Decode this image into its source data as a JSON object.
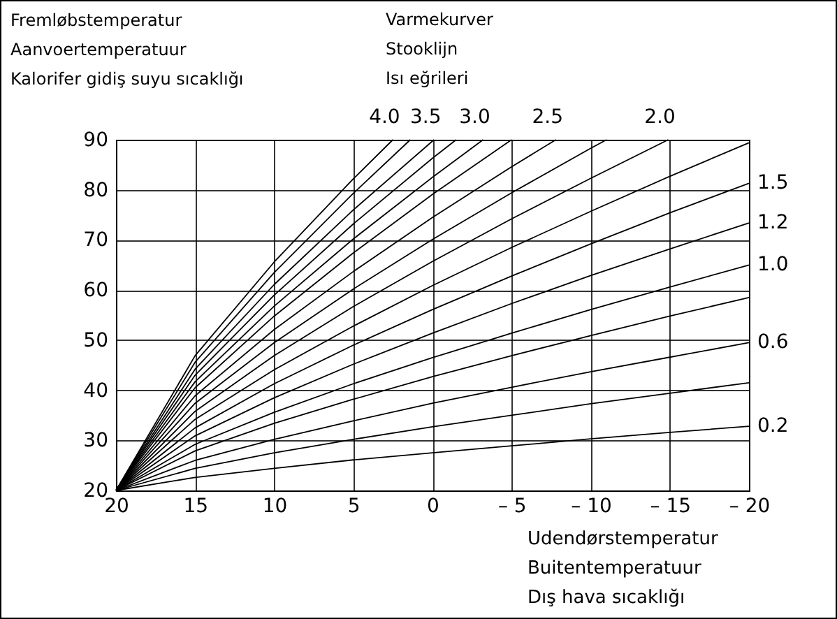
{
  "chart_data": {
    "type": "line",
    "ylabel": "Fremløbstemperatur\nAanvoertemperatuur\nKalorifer gidiş suyu sıcaklığı",
    "legend_title": "Varmekurver\nStooklijn\nIsı eğrileri",
    "xlabel": "Udendørstemperatur\nBuitentemperatuur\nDış hava sıcaklığı",
    "xlim": [
      20,
      -20
    ],
    "ylim": [
      20,
      90
    ],
    "xticks": [
      20,
      15,
      10,
      5,
      0,
      {
        "value": -5,
        "label": "– 5"
      },
      {
        "value": -10,
        "label": "– 10"
      },
      {
        "value": -15,
        "label": "– 15"
      },
      {
        "value": -20,
        "label": "– 20"
      }
    ],
    "yticks": [
      20,
      30,
      40,
      50,
      60,
      70,
      80,
      90
    ],
    "grid": true,
    "legend": false,
    "series": [
      {
        "name": "0.2",
        "color": "#000000",
        "x": [
          20,
          15,
          10,
          5,
          0,
          -5,
          -10,
          -15,
          -20
        ],
        "values": [
          20,
          22.6,
          24.4,
          26.1,
          27.5,
          28.9,
          30.3,
          31.6,
          32.8
        ]
      },
      {
        "color": "#000000",
        "x": [
          20,
          15,
          10,
          5,
          0,
          -5,
          -10,
          -15,
          -20
        ],
        "values": [
          20,
          24.4,
          27.5,
          30.2,
          32.7,
          35.0,
          37.3,
          39.4,
          41.5
        ]
      },
      {
        "name": "0.6",
        "color": "#000000",
        "x": [
          20,
          15,
          10,
          5,
          0,
          -5,
          -10,
          -15,
          -20
        ],
        "values": [
          20,
          26.0,
          30.2,
          33.9,
          37.4,
          40.6,
          43.7,
          46.6,
          49.5
        ]
      },
      {
        "color": "#000000",
        "x": [
          20,
          15,
          10,
          5,
          0,
          -5,
          -10,
          -15,
          -20
        ],
        "values": [
          20,
          27.9,
          33.4,
          38.2,
          42.7,
          46.9,
          50.9,
          54.8,
          58.5
        ]
      },
      {
        "name": "1.0",
        "color": "#000000",
        "x": [
          20,
          15,
          10,
          5,
          0,
          -5,
          -10,
          -15,
          -20
        ],
        "values": [
          20,
          29.2,
          35.6,
          41.3,
          46.5,
          51.4,
          56.1,
          60.6,
          65.0
        ]
      },
      {
        "name": "1.2",
        "color": "#000000",
        "x": [
          20,
          15,
          10,
          5,
          0,
          -5,
          -10,
          -15,
          -20
        ],
        "values": [
          20,
          30.9,
          38.5,
          45.2,
          51.4,
          57.3,
          62.9,
          68.2,
          73.4
        ]
      },
      {
        "name": "1.5",
        "color": "#000000",
        "x": [
          20,
          15,
          10,
          5,
          0,
          -5,
          -10,
          -15,
          -20
        ],
        "values": [
          20,
          32.5,
          41.3,
          49.0,
          56.1,
          62.8,
          69.2,
          75.4,
          81.3
        ]
      },
      {
        "color": "#000000",
        "x": [
          20,
          15,
          10,
          5,
          0,
          -5,
          -10,
          -15,
          -20
        ],
        "values": [
          20,
          34.2,
          44.1,
          52.8,
          60.9,
          68.5,
          75.7,
          82.7,
          89.4
        ]
      },
      {
        "name": "2.0",
        "color": "#000000",
        "x": [
          20,
          15,
          10,
          5,
          0,
          -5,
          -10,
          -14.9
        ],
        "values": [
          20,
          35.8,
          46.9,
          56.7,
          65.7,
          74.2,
          82.3,
          90
        ]
      },
      {
        "color": "#000000",
        "x": [
          20,
          15,
          10,
          5,
          0,
          -5,
          -10,
          -11
        ],
        "values": [
          20,
          37.4,
          49.5,
          60.2,
          70.1,
          79.4,
          88.3,
          90
        ]
      },
      {
        "name": "2.5",
        "color": "#000000",
        "x": [
          20,
          15,
          10,
          5,
          0,
          -5,
          -7.8
        ],
        "values": [
          20,
          38.9,
          52.1,
          63.7,
          74.5,
          84.6,
          90
        ]
      },
      {
        "color": "#000000",
        "x": [
          20,
          15,
          10,
          5,
          0,
          -5
        ],
        "values": [
          20,
          40.5,
          54.8,
          67.4,
          79.1,
          90
        ]
      },
      {
        "name": "3.0",
        "color": "#000000",
        "x": [
          20,
          15,
          10,
          5,
          0,
          -3.2
        ],
        "values": [
          20,
          41.7,
          56.8,
          70.2,
          82.5,
          90
        ]
      },
      {
        "color": "#000000",
        "x": [
          20,
          15,
          10,
          5,
          0,
          -1.5
        ],
        "values": [
          20,
          43.0,
          59.0,
          73.2,
          86.3,
          90
        ]
      },
      {
        "name": "3.5",
        "color": "#000000",
        "x": [
          20,
          15,
          10,
          5,
          -0.1
        ],
        "values": [
          20,
          44.2,
          61.1,
          76.0,
          90
        ]
      },
      {
        "color": "#000000",
        "x": [
          20,
          15,
          10,
          5,
          1.4
        ],
        "values": [
          20,
          45.6,
          63.5,
          79.3,
          90
        ]
      },
      {
        "name": "4.0",
        "color": "#000000",
        "x": [
          20,
          15,
          10,
          5,
          2.5
        ],
        "values": [
          20,
          46.9,
          65.6,
          82.2,
          90
        ]
      }
    ]
  }
}
